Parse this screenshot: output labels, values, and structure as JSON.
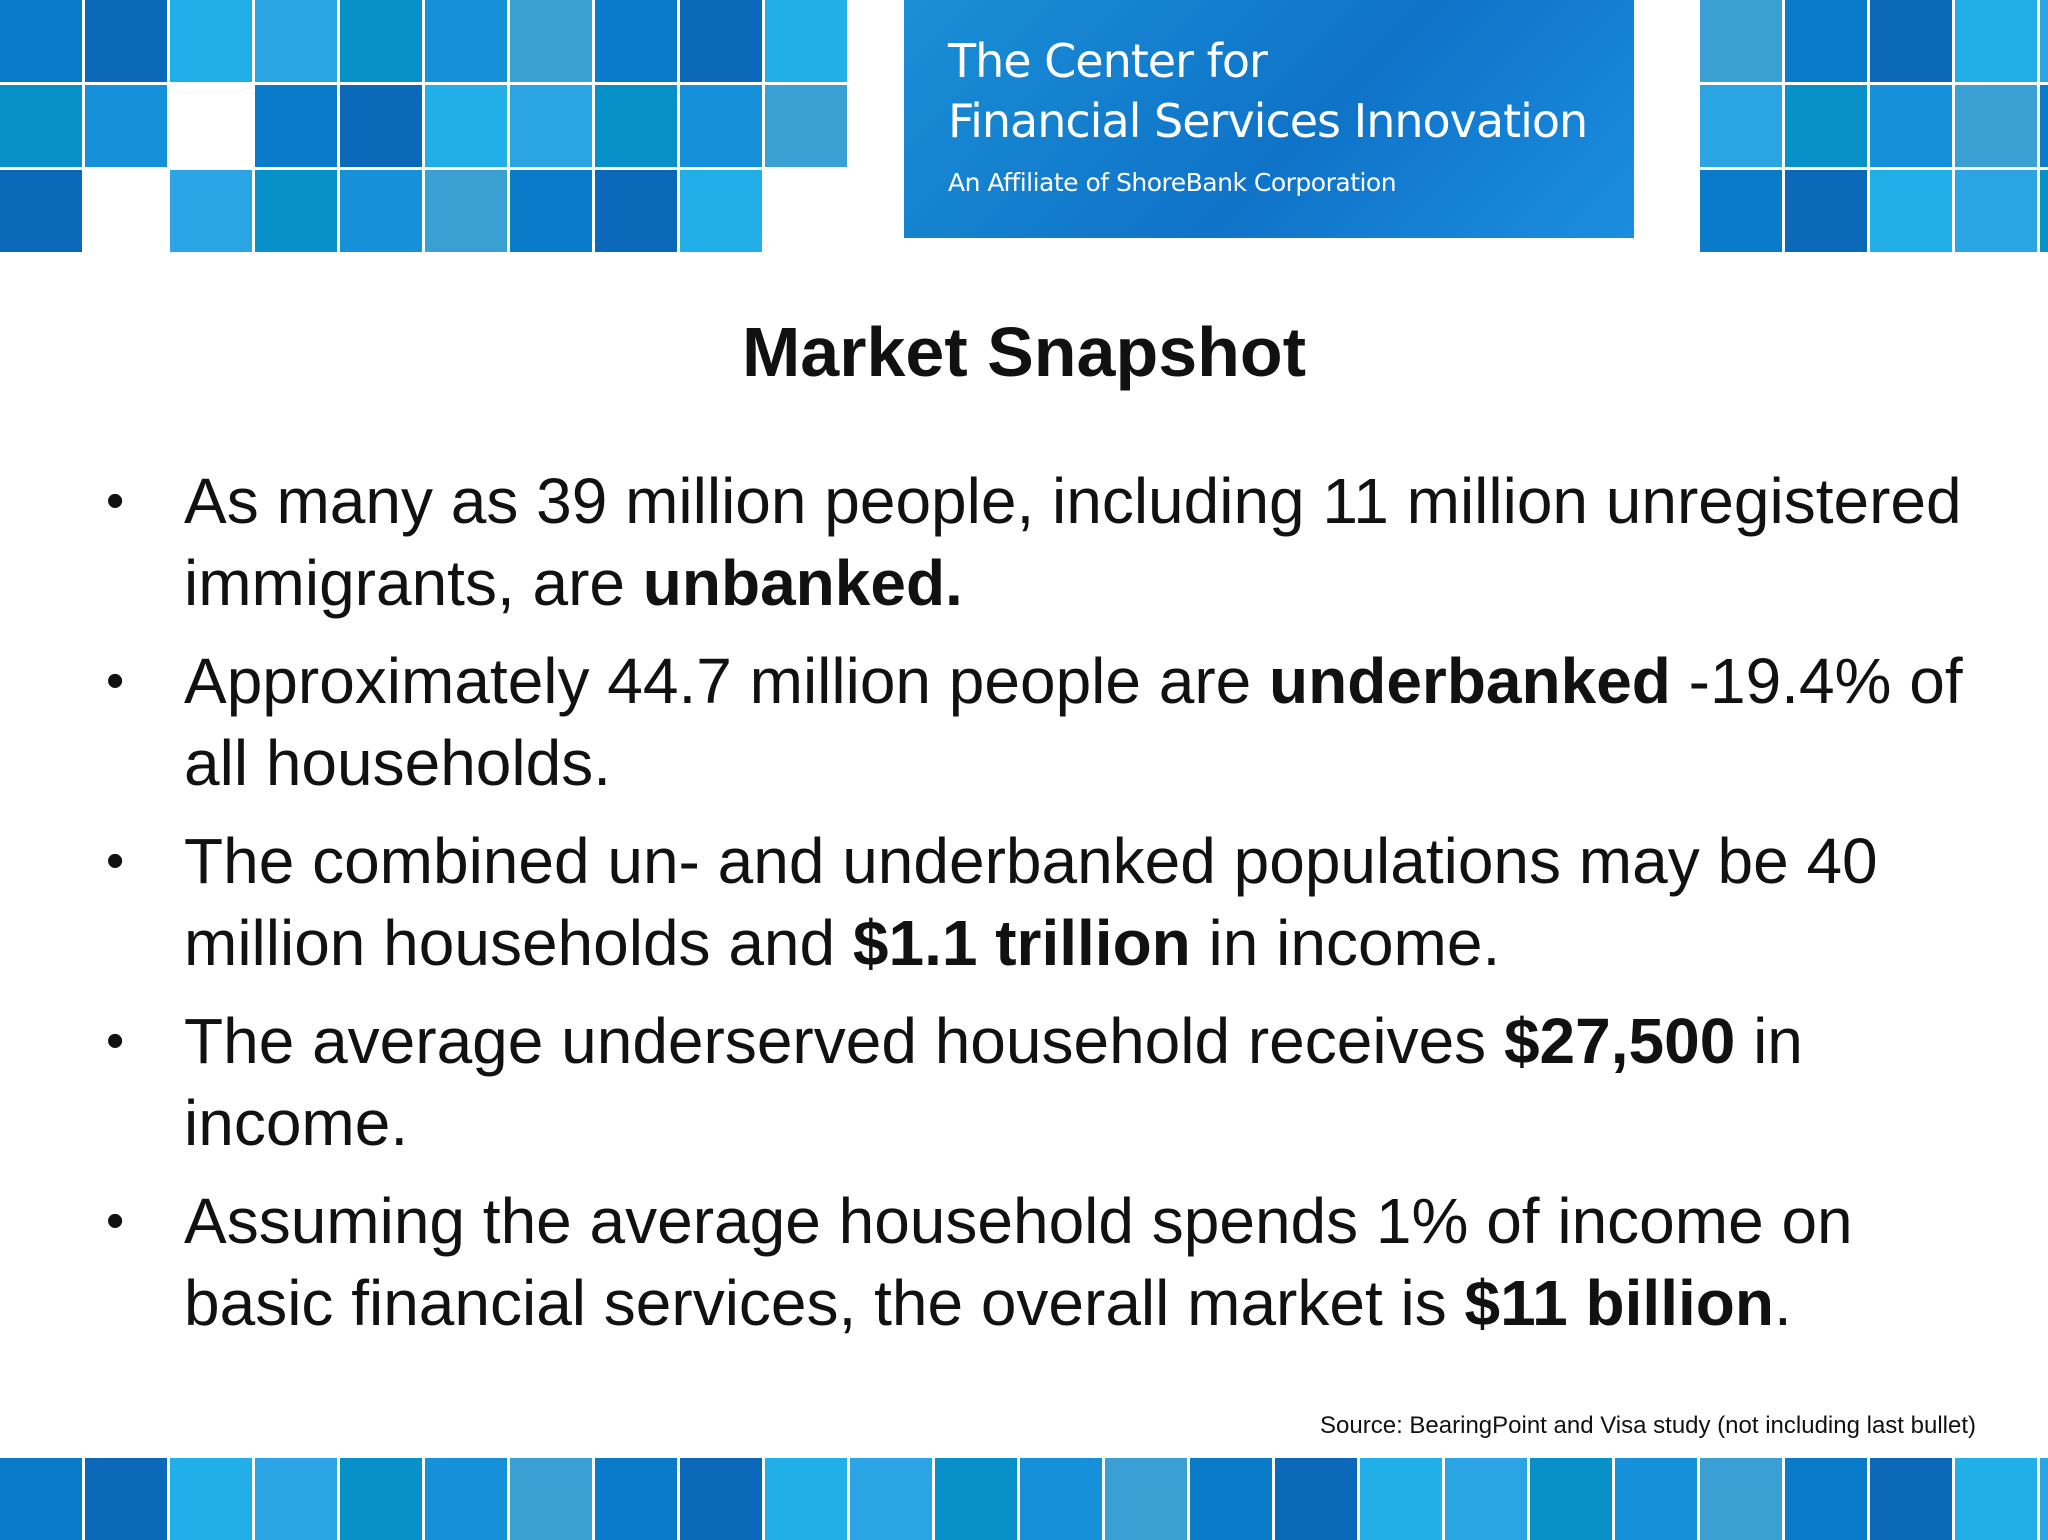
{
  "header": {
    "org_name_line1": "The Center for",
    "org_name_line2": "Financial Services Innovation",
    "affiliate": "An Affiliate of ShoreBank Corporation"
  },
  "slide": {
    "title": "Market Snapshot",
    "bullets": [
      {
        "pre": "As many as 39 million people, including 11 million unregistered immigrants, are ",
        "bold": "unbanked.",
        "post": ""
      },
      {
        "pre": "Approximately 44.7 million people are ",
        "bold": "underbanked",
        "post": " -19.4% of all households."
      },
      {
        "pre": "The combined un- and underbanked  populations may be 40 million households and ",
        "bold": "$1.1 trillion",
        "post": " in income."
      },
      {
        "pre": "The average underserved household receives ",
        "bold": "$27,500",
        "post": " in income."
      },
      {
        "pre": "Assuming the average household spends 1% of income on basic financial services, the overall market is ",
        "bold": "$11 billion",
        "post": "."
      }
    ],
    "source": "Source: BearingPoint and Visa study (not including last bullet)"
  },
  "colors": {
    "tile_palette": [
      "#0a7bc8",
      "#1690d9",
      "#2aa4e2",
      "#0c68b8",
      "#3a9fd2",
      "#0891c9",
      "#22aee6"
    ],
    "brand_text": "#ffffff",
    "body_text": "#111111"
  }
}
